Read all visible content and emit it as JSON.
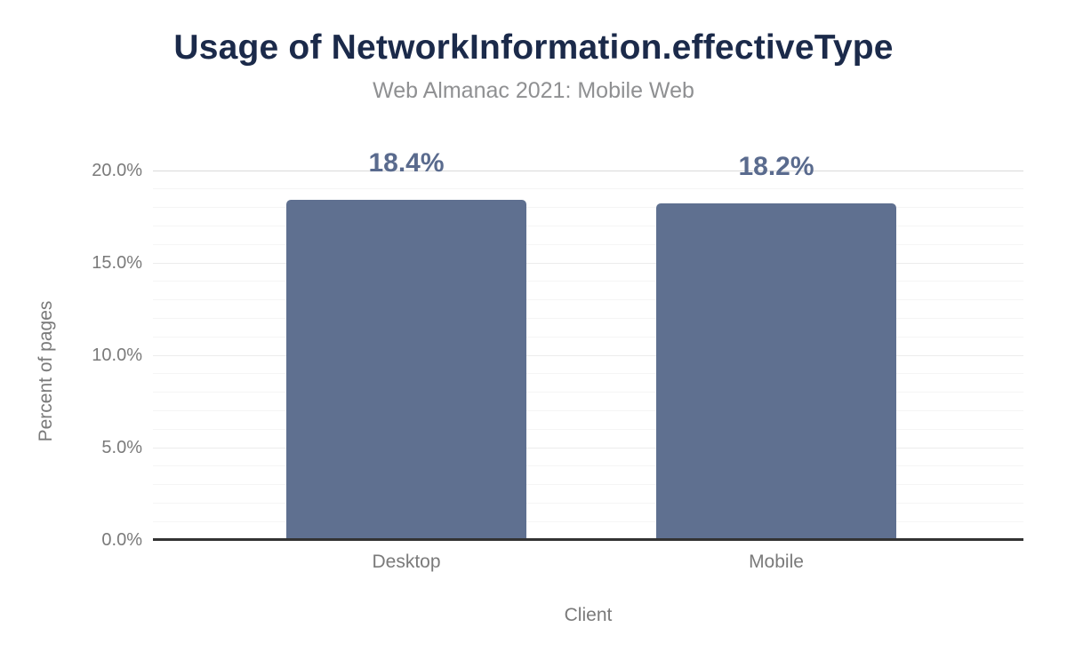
{
  "chart_data": {
    "type": "bar",
    "title": "Usage of NetworkInformation.effectiveType",
    "subtitle": "Web Almanac 2021: Mobile Web",
    "xlabel": "Client",
    "ylabel": "Percent of pages",
    "categories": [
      "Desktop",
      "Mobile"
    ],
    "values": [
      18.4,
      18.2
    ],
    "value_labels": [
      "18.4%",
      "18.2%"
    ],
    "ylim": [
      0,
      20
    ],
    "y_ticks": [
      {
        "value": 0,
        "label": "0.0%"
      },
      {
        "value": 5,
        "label": "5.0%"
      },
      {
        "value": 10,
        "label": "10.0%"
      },
      {
        "value": 15,
        "label": "15.0%"
      },
      {
        "value": 20,
        "label": "20.0%"
      }
    ],
    "grid": "horizontal minor lines every 1%, major every 5%, no vertical grid",
    "legend": "none",
    "colors": {
      "bar": "#5f7090",
      "value_label": "#5a6b8e",
      "title": "#1b2a4a",
      "subtitle": "#8f9092",
      "axis_text": "#7a7a7a",
      "axis_line": "#333333"
    }
  }
}
